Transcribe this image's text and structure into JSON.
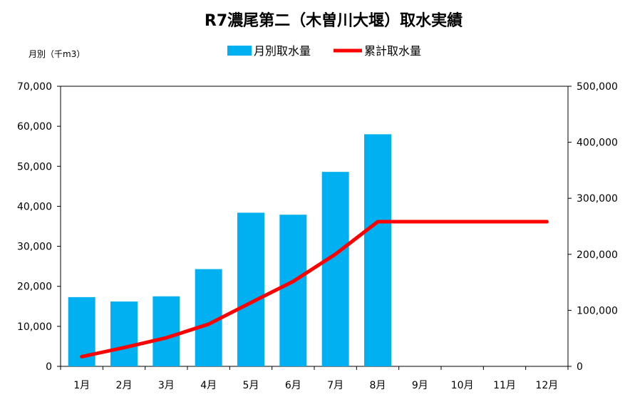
{
  "chart_data": {
    "type": "bar+line",
    "title": "R7濃尾第二（木曽川大堰）取水実績",
    "y_left_unit": "月別（千m3）",
    "categories": [
      "1月",
      "2月",
      "3月",
      "4月",
      "5月",
      "6月",
      "7月",
      "8月",
      "9月",
      "10月",
      "11月",
      "12月"
    ],
    "series": [
      {
        "name": "月別取水量",
        "type": "bar",
        "axis": "left",
        "color": "#00B0F0",
        "values": [
          17300,
          16200,
          17500,
          24300,
          38400,
          37900,
          48600,
          58000,
          null,
          null,
          null,
          null
        ]
      },
      {
        "name": "累計取水量",
        "type": "line",
        "axis": "right",
        "color": "#FF0000",
        "values": [
          17300,
          33500,
          51000,
          75300,
          113700,
          151600,
          200200,
          258200,
          258200,
          258200,
          258200,
          258200
        ]
      }
    ],
    "y_left": {
      "min": 0,
      "max": 70000,
      "step": 10000,
      "ticks": [
        "0",
        "10,000",
        "20,000",
        "30,000",
        "40,000",
        "50,000",
        "60,000",
        "70,000"
      ]
    },
    "y_right": {
      "min": 0,
      "max": 500000,
      "step": 100000,
      "ticks": [
        "0",
        "100,000",
        "200,000",
        "300,000",
        "400,000",
        "500,000"
      ]
    },
    "legend_position": "top-center",
    "grid": false
  }
}
